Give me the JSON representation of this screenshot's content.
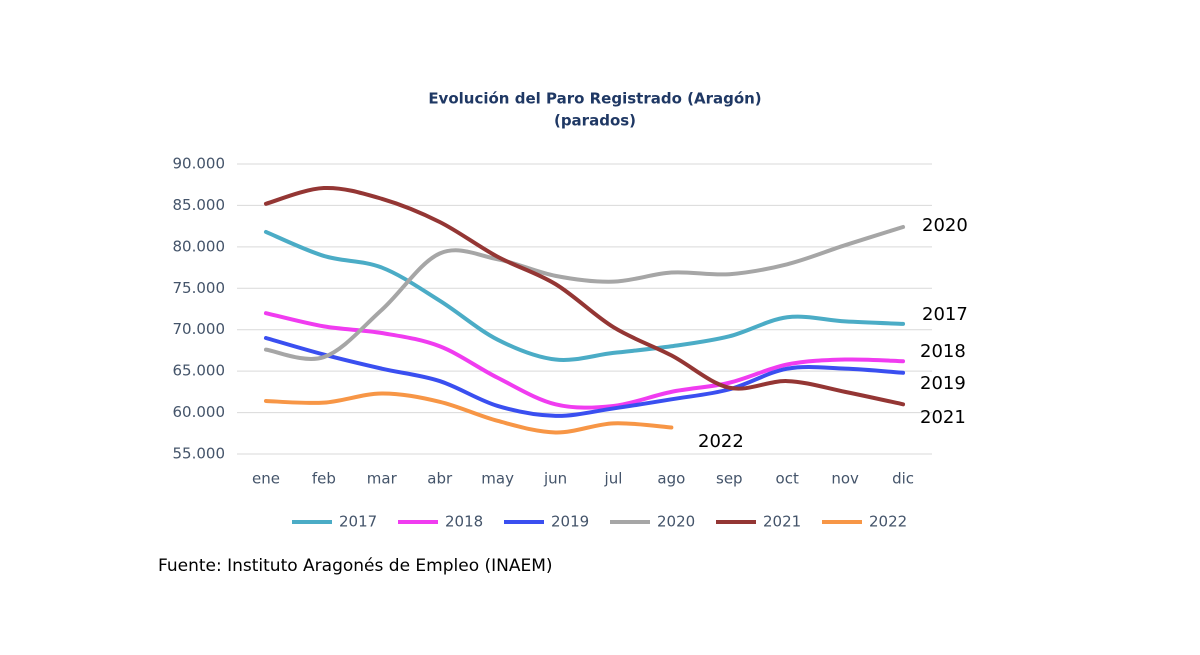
{
  "chart_data": {
    "type": "line",
    "title": "Evolución del Paro Registrado (Aragón)",
    "subtitle": "(parados)",
    "source": "Fuente: Instituto Aragonés de Empleo (INAEM)",
    "categories": [
      "ene",
      "feb",
      "mar",
      "abr",
      "may",
      "jun",
      "jul",
      "ago",
      "sep",
      "oct",
      "nov",
      "dic"
    ],
    "ylim": [
      55000,
      90000
    ],
    "yticks": [
      {
        "value": 55000,
        "label": "55.000"
      },
      {
        "value": 60000,
        "label": "60.000"
      },
      {
        "value": 65000,
        "label": "65.000"
      },
      {
        "value": 70000,
        "label": "70.000"
      },
      {
        "value": 75000,
        "label": "75.000"
      },
      {
        "value": 80000,
        "label": "80.000"
      },
      {
        "value": 85000,
        "label": "85.000"
      },
      {
        "value": 90000,
        "label": "90.000"
      }
    ],
    "grid": true,
    "legend": "bottom",
    "series": [
      {
        "name": "2017",
        "color": "#4bacc6",
        "values": [
          81800,
          78900,
          77500,
          73500,
          68800,
          66400,
          67200,
          68000,
          69200,
          71500,
          71000,
          70700
        ]
      },
      {
        "name": "2018",
        "color": "#f03cf0",
        "values": [
          72000,
          70400,
          69600,
          68000,
          64200,
          61000,
          60800,
          62500,
          63600,
          65800,
          66400,
          66200
        ]
      },
      {
        "name": "2019",
        "color": "#3a4ff0",
        "values": [
          69000,
          67000,
          65300,
          63800,
          60800,
          59600,
          60500,
          61600,
          62800,
          65300,
          65300,
          64800
        ]
      },
      {
        "name": "2020",
        "color": "#a6a6a6",
        "values": [
          67600,
          66700,
          72400,
          79200,
          78500,
          76500,
          75800,
          76900,
          76700,
          77900,
          80200,
          82400
        ]
      },
      {
        "name": "2021",
        "color": "#943634",
        "values": [
          85200,
          87100,
          85800,
          83000,
          78800,
          75500,
          70300,
          66900,
          63000,
          63800,
          62500,
          61000
        ]
      },
      {
        "name": "2022",
        "color": "#f79646",
        "values": [
          61400,
          61200,
          62300,
          61300,
          59000,
          57600,
          58700,
          58200,
          null,
          null,
          null,
          null
        ]
      }
    ]
  }
}
